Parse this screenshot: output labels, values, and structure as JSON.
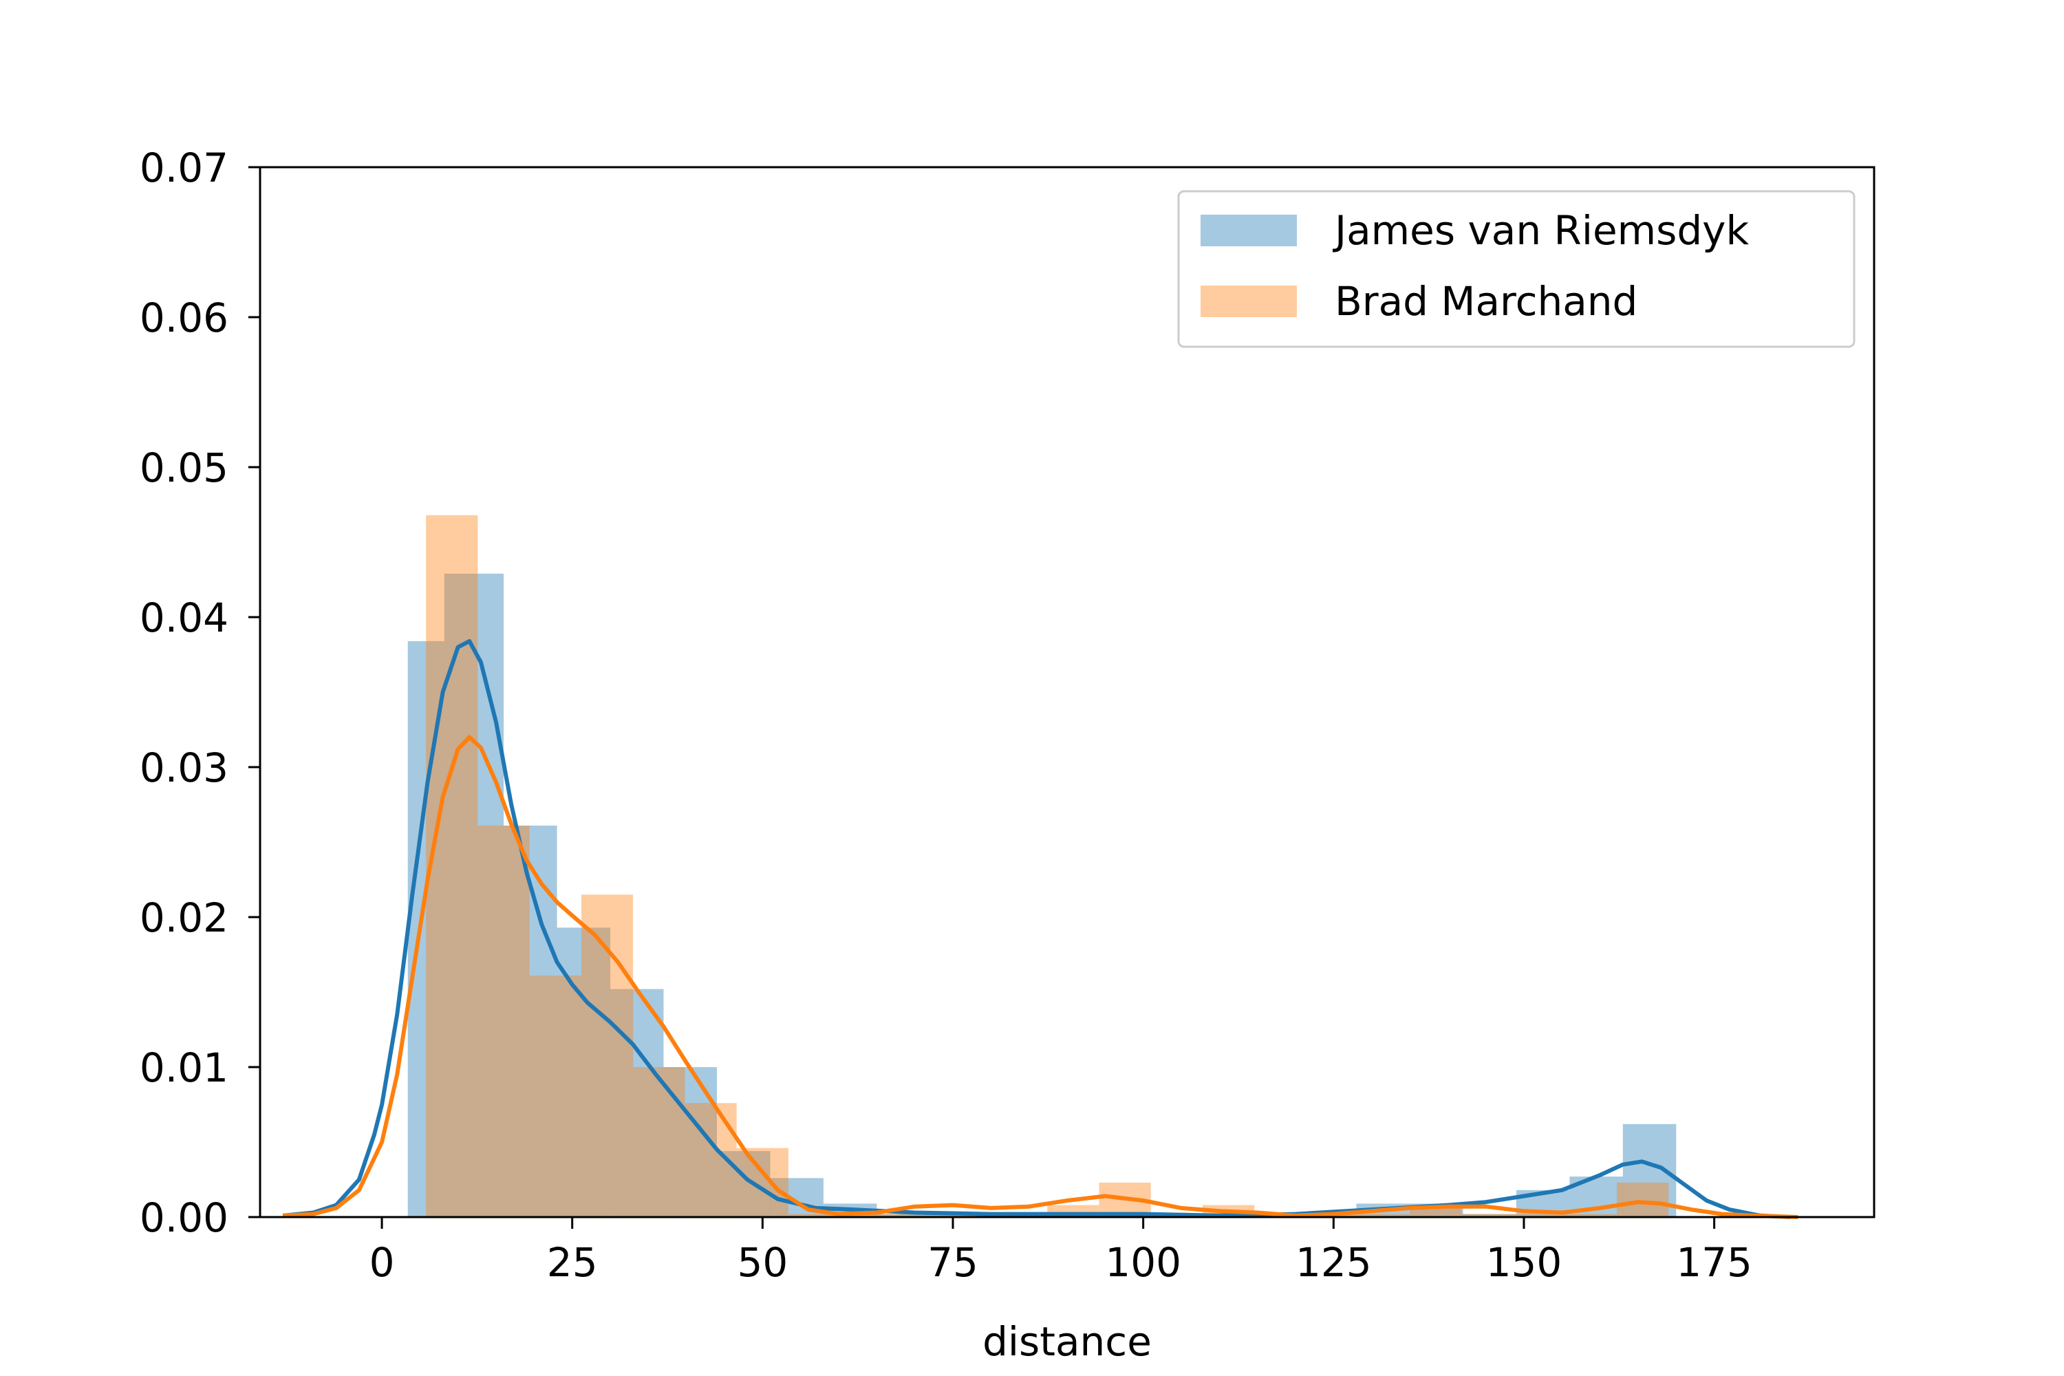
{
  "chart_data": {
    "type": "histogram-kde",
    "title": "",
    "xlabel": "distance",
    "ylabel": "",
    "xlim": [
      -16,
      196
    ],
    "ylim": [
      0,
      0.07
    ],
    "xticks": [
      0,
      25,
      50,
      75,
      100,
      125,
      150,
      175
    ],
    "xtick_labels": [
      "0",
      "25",
      "50",
      "75",
      "100",
      "125",
      "150",
      "175"
    ],
    "yticks": [
      0,
      0.01,
      0.02,
      0.03,
      0.04,
      0.05,
      0.06,
      0.07
    ],
    "ytick_labels": [
      "0.00",
      "0.01",
      "0.02",
      "0.03",
      "0.04",
      "0.05",
      "0.06",
      "0.07"
    ],
    "legend_position": "upper-right",
    "grid": false,
    "series": [
      {
        "name": "James van Riemsdyk",
        "color": "#1f77b4",
        "bins": [
          [
            3.4,
            8.2,
            0.0384
          ],
          [
            8.2,
            16.0,
            0.0429
          ],
          [
            16.0,
            23.0,
            0.0261
          ],
          [
            23.0,
            30.0,
            0.0193
          ],
          [
            30.0,
            37.0,
            0.0152
          ],
          [
            37.0,
            44.0,
            0.01
          ],
          [
            44.0,
            51.0,
            0.0044
          ],
          [
            51.0,
            58.0,
            0.0026
          ],
          [
            58.0,
            65.0,
            0.0009
          ],
          [
            65.0,
            72.0,
            0.0002
          ],
          [
            72.0,
            79.0,
            0.0002
          ],
          [
            79.0,
            86.0,
            0.0002
          ],
          [
            86.0,
            93.0,
            0.0002
          ],
          [
            93.0,
            100.0,
            0.0002
          ],
          [
            100.0,
            107.0,
            0.0002
          ],
          [
            107.0,
            114.0,
            0.0002
          ],
          [
            114.0,
            121.0,
            0.0002
          ],
          [
            121.0,
            128.0,
            0.0002
          ],
          [
            128.0,
            135.0,
            0.0009
          ],
          [
            135.0,
            142.0,
            0.0009
          ],
          [
            142.0,
            149.0,
            0.0002
          ],
          [
            149.0,
            156.0,
            0.0018
          ],
          [
            156.0,
            163.0,
            0.0027
          ],
          [
            163.0,
            170.0,
            0.0062
          ]
        ],
        "kde": [
          [
            -13,
            0.0001
          ],
          [
            -9,
            0.0003
          ],
          [
            -6,
            0.0008
          ],
          [
            -3,
            0.0025
          ],
          [
            -1,
            0.0055
          ],
          [
            0,
            0.0075
          ],
          [
            2,
            0.0135
          ],
          [
            4,
            0.0215
          ],
          [
            6,
            0.029
          ],
          [
            8,
            0.035
          ],
          [
            10,
            0.038
          ],
          [
            11.5,
            0.0384
          ],
          [
            13,
            0.037
          ],
          [
            15,
            0.033
          ],
          [
            17,
            0.0275
          ],
          [
            19,
            0.023
          ],
          [
            21,
            0.0195
          ],
          [
            23,
            0.017
          ],
          [
            25,
            0.0155
          ],
          [
            27,
            0.0143
          ],
          [
            30,
            0.013
          ],
          [
            33,
            0.0115
          ],
          [
            36,
            0.0095
          ],
          [
            40,
            0.007
          ],
          [
            44,
            0.0045
          ],
          [
            48,
            0.0025
          ],
          [
            52,
            0.0012
          ],
          [
            57,
            0.0006
          ],
          [
            62,
            0.0005
          ],
          [
            70,
            0.0003
          ],
          [
            80,
            0.0002
          ],
          [
            90,
            0.0002
          ],
          [
            100,
            0.0002
          ],
          [
            110,
            0.0001
          ],
          [
            120,
            0.0002
          ],
          [
            130,
            0.0005
          ],
          [
            140,
            0.0008
          ],
          [
            145,
            0.001
          ],
          [
            150,
            0.0014
          ],
          [
            155,
            0.0018
          ],
          [
            160,
            0.0028
          ],
          [
            163,
            0.0035
          ],
          [
            165.5,
            0.0037
          ],
          [
            168,
            0.0033
          ],
          [
            171,
            0.0022
          ],
          [
            174,
            0.0011
          ],
          [
            177,
            0.0005
          ],
          [
            181,
            0.0001
          ],
          [
            185,
            0.0
          ]
        ]
      },
      {
        "name": "Brad Marchand",
        "color": "#ff7f0e",
        "bins": [
          [
            5.8,
            12.6,
            0.0468
          ],
          [
            12.6,
            19.4,
            0.0261
          ],
          [
            19.4,
            26.2,
            0.0161
          ],
          [
            26.2,
            33.0,
            0.0215
          ],
          [
            33.0,
            39.8,
            0.01
          ],
          [
            39.8,
            46.6,
            0.0076
          ],
          [
            46.6,
            53.4,
            0.0046
          ],
          [
            53.4,
            60.2,
            0.0002
          ],
          [
            60.2,
            67.0,
            0.0002
          ],
          [
            67.0,
            73.8,
            0.0002
          ],
          [
            73.8,
            80.6,
            0.0002
          ],
          [
            80.6,
            87.4,
            0.0002
          ],
          [
            87.4,
            94.2,
            0.0008
          ],
          [
            94.2,
            101.0,
            0.0023
          ],
          [
            101.0,
            107.8,
            0.0002
          ],
          [
            107.8,
            114.6,
            0.0008
          ],
          [
            114.6,
            121.4,
            0.0002
          ],
          [
            121.4,
            128.2,
            0.0002
          ],
          [
            128.2,
            135.0,
            0.0002
          ],
          [
            135.0,
            141.8,
            0.0008
          ],
          [
            141.8,
            148.6,
            0.0002
          ],
          [
            148.6,
            155.4,
            0.0002
          ],
          [
            155.4,
            162.2,
            0.0002
          ],
          [
            162.2,
            169.0,
            0.0023
          ]
        ],
        "kde": [
          [
            -13,
            0.0001
          ],
          [
            -9,
            0.0002
          ],
          [
            -6,
            0.0006
          ],
          [
            -3,
            0.0018
          ],
          [
            0,
            0.005
          ],
          [
            2,
            0.0095
          ],
          [
            4,
            0.016
          ],
          [
            6,
            0.0225
          ],
          [
            8,
            0.028
          ],
          [
            10,
            0.0312
          ],
          [
            11.5,
            0.032
          ],
          [
            13,
            0.0313
          ],
          [
            15,
            0.029
          ],
          [
            17,
            0.0262
          ],
          [
            19,
            0.0238
          ],
          [
            21,
            0.0222
          ],
          [
            23,
            0.021
          ],
          [
            25,
            0.0201
          ],
          [
            28,
            0.0188
          ],
          [
            31,
            0.017
          ],
          [
            34,
            0.0148
          ],
          [
            37,
            0.0127
          ],
          [
            40,
            0.0103
          ],
          [
            44,
            0.0072
          ],
          [
            48,
            0.0042
          ],
          [
            52,
            0.0018
          ],
          [
            56,
            0.0005
          ],
          [
            60,
            0.0002
          ],
          [
            65,
            0.0003
          ],
          [
            70,
            0.0007
          ],
          [
            75,
            0.0008
          ],
          [
            80,
            0.0006
          ],
          [
            85,
            0.0007
          ],
          [
            90,
            0.0011
          ],
          [
            95,
            0.0014
          ],
          [
            100,
            0.0011
          ],
          [
            105,
            0.0006
          ],
          [
            110,
            0.0004
          ],
          [
            115,
            0.0003
          ],
          [
            120,
            0.0001
          ],
          [
            125,
            0.0002
          ],
          [
            130,
            0.0004
          ],
          [
            135,
            0.0006
          ],
          [
            140,
            0.0007
          ],
          [
            145,
            0.0007
          ],
          [
            150,
            0.0004
          ],
          [
            155,
            0.0003
          ],
          [
            160,
            0.0006
          ],
          [
            165,
            0.001
          ],
          [
            168,
            0.0009
          ],
          [
            172,
            0.0005
          ],
          [
            176,
            0.0002
          ],
          [
            180,
            0.0001
          ],
          [
            186,
            0.0
          ]
        ]
      }
    ]
  }
}
